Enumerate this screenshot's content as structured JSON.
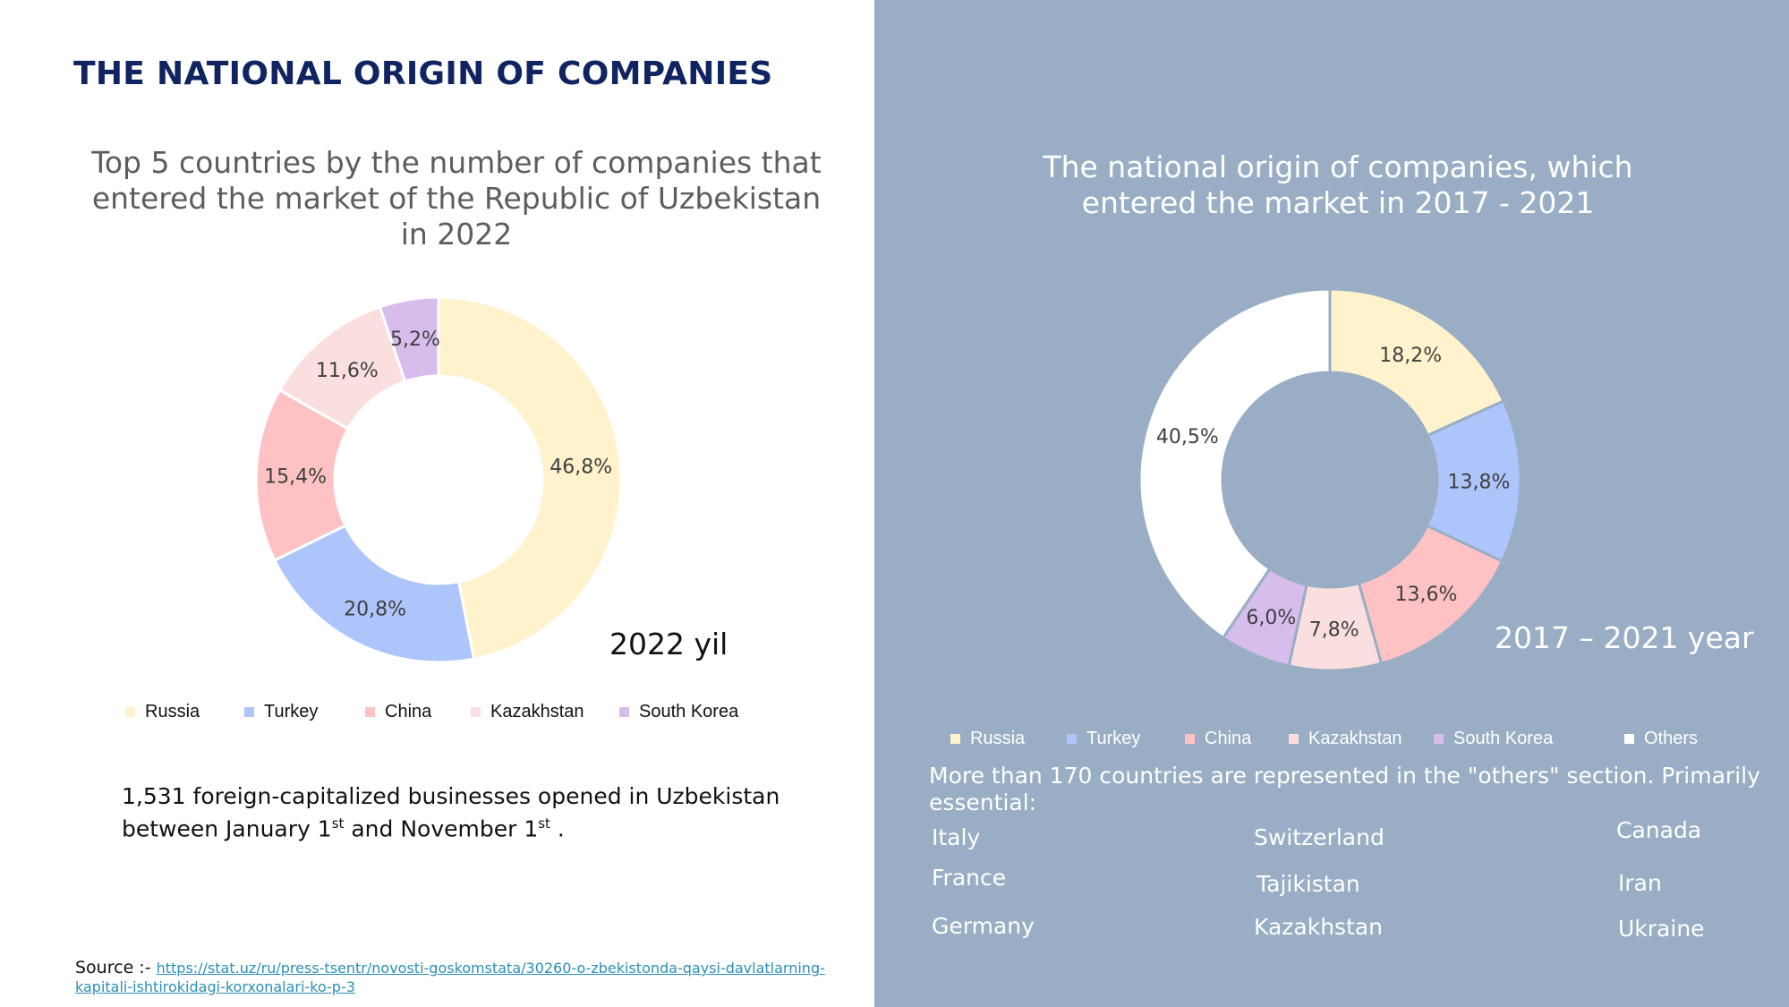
{
  "main_title": "THE NATIONAL ORIGIN OF COMPANIES",
  "left_chart": {
    "title_lines": [
      "Top 5 countries by the number of companies that",
      "entered the market of the Republic of Uzbekistan",
      "in 2022"
    ],
    "year_label": "2022 yil"
  },
  "right_chart": {
    "title_lines": [
      "The national origin of companies, which",
      "entered the market in 2017 - 2021"
    ],
    "year_label": "2017 – 2021 year"
  },
  "chart_data": [
    {
      "type": "pie",
      "variant": "donut",
      "title": "Top 5 countries by the number of companies that entered the market of the Republic of Uzbekistan in 2022",
      "categories": [
        "Russia",
        "Turkey",
        "China",
        "Kazakhstan",
        "South Korea"
      ],
      "values": [
        46.8,
        20.8,
        15.4,
        11.6,
        5.2
      ],
      "value_labels": [
        "46,8%",
        "20,8%",
        "15,4%",
        "11,6%",
        "5,2%"
      ],
      "colors": [
        "#fff2cc",
        "#adc5fb",
        "#ffc2c4",
        "#fbdfdf",
        "#d6bdeb"
      ],
      "legend": "bottom",
      "annotation": "2022 yil"
    },
    {
      "type": "pie",
      "variant": "donut",
      "title": "The national origin of companies, which entered the market in 2017 - 2021",
      "categories": [
        "Russia",
        "Turkey",
        "China",
        "Kazakhstan",
        "South Korea",
        "Others"
      ],
      "values": [
        18.2,
        13.8,
        13.6,
        7.8,
        6.0,
        40.5
      ],
      "value_labels": [
        "18,2%",
        "13,8%",
        "13,6%",
        "7,8%",
        "6,0%",
        "40,5%"
      ],
      "colors": [
        "#fff2cc",
        "#adc5fb",
        "#ffc2c4",
        "#fbdfdf",
        "#d6bdeb",
        "#ffffff"
      ],
      "legend": "bottom",
      "annotation": "2017 – 2021 year"
    }
  ],
  "note": {
    "line1": "1,531 foreign-capitalized businesses opened in Uzbekistan",
    "line2_a": "between January 1",
    "line2_sup1": "st",
    "line2_b": " and November 1",
    "line2_sup2": "st",
    "line2_c": " ."
  },
  "source": {
    "label": "Source :- ",
    "link_line1": "https://stat.uz/ru/press-tsentr/novosti-goskomstata/30260-o-zbekistonda-qaysi-davlatlarning-",
    "link_line2": "kapitali-ishtirokidagi-korxonalari-ko-p-3"
  },
  "others_section": {
    "intro": "More than 170 countries are represented in the \"others\" section. Primarily essential:",
    "countries": [
      "Italy",
      "France",
      "Germany",
      "Switzerland",
      "Tajikistan",
      "Kazakhstan",
      "Canada",
      "Iran",
      "Ukraine"
    ]
  }
}
